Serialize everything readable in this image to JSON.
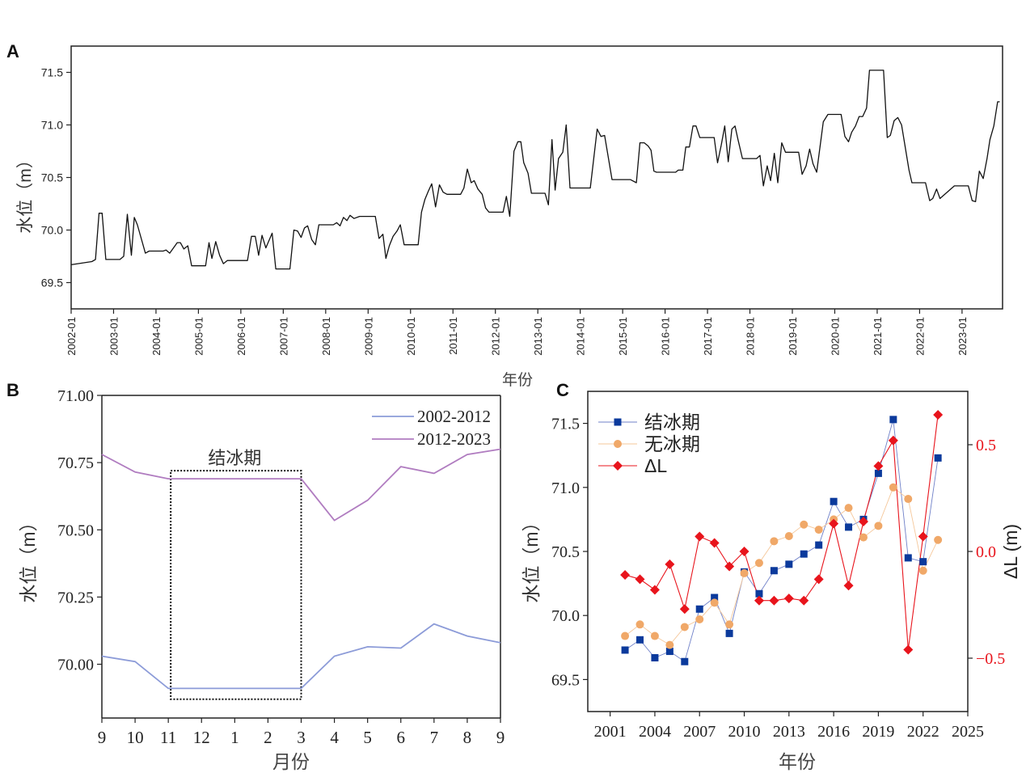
{
  "chart_data": [
    {
      "panel": "A",
      "type": "line",
      "xlabel": "年份",
      "ylabel": "水位（m）",
      "xlim": [
        "2002-01",
        "2023-12"
      ],
      "ylim": [
        69.25,
        71.75
      ],
      "yticks": [
        69.5,
        70.0,
        70.5,
        71.0,
        71.5
      ],
      "ytick_labels": [
        "69.5",
        "70.0",
        "70.5",
        "71.0",
        "71.5"
      ],
      "xtick_labels": [
        "2002-01",
        "2003-01",
        "2004-01",
        "2005-01",
        "2006-01",
        "2007-01",
        "2008-01",
        "2009-01",
        "2010-01",
        "2011-01",
        "2012-01",
        "2013-01",
        "2014-01",
        "2015-01",
        "2016-01",
        "2017-01",
        "2018-01",
        "2019-01",
        "2020-01",
        "2021-01",
        "2022-01",
        "2023-01"
      ],
      "color": "#111111",
      "points": [
        [
          "2002-01-01",
          69.67
        ],
        [
          "2002-06-27",
          69.7
        ],
        [
          "2002-07-28",
          69.72
        ],
        [
          "2002-08-28",
          70.16
        ],
        [
          "2002-09-24",
          70.16
        ],
        [
          "2002-10-26",
          69.72
        ],
        [
          "2003-02-25",
          69.72
        ],
        [
          "2003-03-27",
          69.75
        ],
        [
          "2003-04-28",
          70.15
        ],
        [
          "2003-06-02",
          69.76
        ],
        [
          "2003-06-27",
          70.12
        ],
        [
          "2003-07-23",
          70.05
        ],
        [
          "2003-10-01",
          69.78
        ],
        [
          "2003-11-03",
          69.8
        ],
        [
          "2004-03-02",
          69.8
        ],
        [
          "2004-03-27",
          69.81
        ],
        [
          "2004-04-28",
          69.78
        ],
        [
          "2004-07-01",
          69.88
        ],
        [
          "2004-07-28",
          69.88
        ],
        [
          "2004-08-28",
          69.82
        ],
        [
          "2004-10-01",
          69.85
        ],
        [
          "2004-11-03",
          69.66
        ],
        [
          "2005-03-02",
          69.66
        ],
        [
          "2005-04-01",
          69.88
        ],
        [
          "2005-04-26",
          69.73
        ],
        [
          "2005-05-28",
          69.89
        ],
        [
          "2005-07-01",
          69.76
        ],
        [
          "2005-08-03",
          69.68
        ],
        [
          "2005-09-06",
          69.71
        ],
        [
          "2006-02-28",
          69.71
        ],
        [
          "2006-04-01",
          69.94
        ],
        [
          "2006-05-03",
          69.94
        ],
        [
          "2006-06-02",
          69.76
        ],
        [
          "2006-07-01",
          69.95
        ],
        [
          "2006-08-03",
          69.83
        ],
        [
          "2006-09-27",
          69.97
        ],
        [
          "2006-10-28",
          69.63
        ],
        [
          "2007-02-28",
          69.63
        ],
        [
          "2007-04-01",
          70.0
        ],
        [
          "2007-05-03",
          69.99
        ],
        [
          "2007-06-02",
          69.93
        ],
        [
          "2007-07-01",
          70.02
        ],
        [
          "2007-07-28",
          70.04
        ],
        [
          "2007-09-02",
          69.91
        ],
        [
          "2007-10-04",
          69.86
        ],
        [
          "2007-11-03",
          70.05
        ],
        [
          "2008-03-06",
          70.05
        ],
        [
          "2008-04-04",
          70.07
        ],
        [
          "2008-05-03",
          70.04
        ],
        [
          "2008-06-02",
          70.12
        ],
        [
          "2008-07-01",
          70.09
        ],
        [
          "2008-07-28",
          70.14
        ],
        [
          "2008-09-02",
          70.11
        ],
        [
          "2008-10-19",
          70.13
        ],
        [
          "2009-03-02",
          70.13
        ],
        [
          "2009-04-04",
          69.92
        ],
        [
          "2009-05-07",
          69.96
        ],
        [
          "2009-06-02",
          69.73
        ],
        [
          "2009-07-01",
          69.85
        ],
        [
          "2009-08-03",
          69.94
        ],
        [
          "2009-09-06",
          69.99
        ],
        [
          "2009-10-04",
          70.05
        ],
        [
          "2009-11-07",
          69.86
        ],
        [
          "2010-03-06",
          69.86
        ],
        [
          "2010-04-04",
          70.17
        ],
        [
          "2010-05-03",
          70.29
        ],
        [
          "2010-06-02",
          70.37
        ],
        [
          "2010-07-01",
          70.44
        ],
        [
          "2010-08-03",
          70.22
        ],
        [
          "2010-09-06",
          70.43
        ],
        [
          "2010-10-08",
          70.36
        ],
        [
          "2010-11-11",
          70.34
        ],
        [
          "2011-03-06",
          70.34
        ],
        [
          "2011-04-04",
          70.4
        ],
        [
          "2011-05-03",
          70.58
        ],
        [
          "2011-06-06",
          70.45
        ],
        [
          "2011-07-01",
          70.47
        ],
        [
          "2011-08-03",
          70.39
        ],
        [
          "2011-09-09",
          70.34
        ],
        [
          "2011-10-08",
          70.21
        ],
        [
          "2011-11-07",
          70.17
        ],
        [
          "2012-03-06",
          70.17
        ],
        [
          "2012-04-04",
          70.32
        ],
        [
          "2012-05-03",
          70.13
        ],
        [
          "2012-06-09",
          70.75
        ],
        [
          "2012-07-12",
          70.84
        ],
        [
          "2012-08-07",
          70.84
        ],
        [
          "2012-09-02",
          70.64
        ],
        [
          "2012-10-08",
          70.54
        ],
        [
          "2012-11-07",
          70.35
        ],
        [
          "2013-03-02",
          70.35
        ],
        [
          "2013-04-01",
          70.24
        ],
        [
          "2013-05-01",
          70.86
        ],
        [
          "2013-05-28",
          70.38
        ],
        [
          "2013-06-27",
          70.68
        ],
        [
          "2013-08-03",
          70.74
        ],
        [
          "2013-09-02",
          71.0
        ],
        [
          "2013-10-04",
          70.4
        ],
        [
          "2014-03-27",
          70.4
        ],
        [
          "2014-05-25",
          70.96
        ],
        [
          "2014-06-27",
          70.89
        ],
        [
          "2014-07-28",
          70.9
        ],
        [
          "2014-10-01",
          70.48
        ],
        [
          "2014-10-26",
          70.48
        ],
        [
          "2015-03-06",
          70.48
        ],
        [
          "2015-04-28",
          70.45
        ],
        [
          "2015-05-28",
          70.83
        ],
        [
          "2015-07-04",
          70.83
        ],
        [
          "2015-08-07",
          70.8
        ],
        [
          "2015-09-02",
          70.76
        ],
        [
          "2015-09-27",
          70.56
        ],
        [
          "2015-10-19",
          70.55
        ],
        [
          "2016-04-01",
          70.55
        ],
        [
          "2016-04-23",
          70.57
        ],
        [
          "2016-06-02",
          70.57
        ],
        [
          "2016-06-27",
          70.79
        ],
        [
          "2016-07-28",
          70.79
        ],
        [
          "2016-08-28",
          70.99
        ],
        [
          "2016-09-24",
          70.99
        ],
        [
          "2016-10-26",
          70.88
        ],
        [
          "2017-02-28",
          70.88
        ],
        [
          "2017-03-27",
          70.64
        ],
        [
          "2017-04-28",
          70.81
        ],
        [
          "2017-05-28",
          70.99
        ],
        [
          "2017-06-27",
          70.65
        ],
        [
          "2017-07-28",
          70.96
        ],
        [
          "2017-08-25",
          70.99
        ],
        [
          "2017-09-20",
          70.86
        ],
        [
          "2017-10-28",
          70.68
        ],
        [
          "2018-02-28",
          70.68
        ],
        [
          "2018-03-27",
          70.71
        ],
        [
          "2018-04-26",
          70.42
        ],
        [
          "2018-05-28",
          70.61
        ],
        [
          "2018-06-27",
          70.47
        ],
        [
          "2018-07-28",
          70.73
        ],
        [
          "2018-08-28",
          70.45
        ],
        [
          "2018-10-01",
          70.83
        ],
        [
          "2018-11-03",
          70.74
        ],
        [
          "2019-02-25",
          70.74
        ],
        [
          "2019-03-24",
          70.53
        ],
        [
          "2019-04-28",
          70.61
        ],
        [
          "2019-05-28",
          70.77
        ],
        [
          "2019-06-27",
          70.63
        ],
        [
          "2019-07-28",
          70.55
        ],
        [
          "2019-09-24",
          71.03
        ],
        [
          "2019-11-03",
          71.1
        ],
        [
          "2020-02-25",
          71.1
        ],
        [
          "2020-03-27",
          70.89
        ],
        [
          "2020-04-28",
          70.84
        ],
        [
          "2020-05-25",
          70.93
        ],
        [
          "2020-06-27",
          70.99
        ],
        [
          "2020-07-28",
          71.08
        ],
        [
          "2020-08-28",
          71.08
        ],
        [
          "2020-10-01",
          71.16
        ],
        [
          "2020-10-26",
          71.52
        ],
        [
          "2021-02-25",
          71.52
        ],
        [
          "2021-03-27",
          70.88
        ],
        [
          "2021-04-23",
          70.9
        ],
        [
          "2021-05-25",
          71.04
        ],
        [
          "2021-06-27",
          71.07
        ],
        [
          "2021-07-28",
          71.0
        ],
        [
          "2021-10-01",
          70.57
        ],
        [
          "2021-10-26",
          70.45
        ],
        [
          "2022-02-21",
          70.45
        ],
        [
          "2022-03-27",
          70.28
        ],
        [
          "2022-04-23",
          70.3
        ],
        [
          "2022-05-25",
          70.39
        ],
        [
          "2022-06-24",
          70.3
        ],
        [
          "2022-10-26",
          70.42
        ],
        [
          "2023-02-25",
          70.42
        ],
        [
          "2023-03-27",
          70.28
        ],
        [
          "2023-04-26",
          70.27
        ],
        [
          "2023-05-28",
          70.56
        ],
        [
          "2023-07-01",
          70.49
        ],
        [
          "2023-08-03",
          70.68
        ],
        [
          "2023-08-28",
          70.86
        ],
        [
          "2023-10-01",
          70.99
        ],
        [
          "2023-11-03",
          71.22
        ],
        [
          "2023-11-21",
          71.22
        ]
      ]
    },
    {
      "panel": "B",
      "type": "line",
      "xlabel": "月份",
      "ylabel": "水位（m）",
      "categories": [
        "9",
        "10",
        "11",
        "12",
        "1",
        "2",
        "3",
        "4",
        "5",
        "6",
        "7",
        "8",
        "9"
      ],
      "ylim": [
        69.8,
        71.0
      ],
      "yticks": [
        70.0,
        70.25,
        70.5,
        70.75,
        71.0
      ],
      "ytick_labels": [
        "70.00",
        "70.25",
        "70.50",
        "70.75",
        "71.00"
      ],
      "legend": "top-right",
      "annotation": {
        "text": "结冰期",
        "from": "11",
        "to": "3",
        "ylim": [
          69.87,
          70.72
        ]
      },
      "series": [
        {
          "name": "2002-2012",
          "color": "#8c9bd8",
          "values": [
            70.03,
            70.01,
            69.91,
            69.91,
            69.91,
            69.91,
            69.91,
            70.03,
            70.065,
            70.06,
            70.15,
            70.105,
            70.08
          ]
        },
        {
          "name": "2012-2023",
          "color": "#b07cc0",
          "values": [
            70.78,
            70.715,
            70.69,
            70.69,
            70.69,
            70.69,
            70.69,
            70.535,
            70.61,
            70.735,
            70.71,
            70.78,
            70.8
          ]
        }
      ]
    },
    {
      "panel": "C",
      "type": "line",
      "xlabel": "年份",
      "ylabel": "水位（m）",
      "ylabel_right": "ΔL (m)",
      "xlim": [
        1999.5,
        2025
      ],
      "xticks": [
        2001,
        2004,
        2007,
        2010,
        2013,
        2016,
        2019,
        2022,
        2025
      ],
      "ylim": [
        69.25,
        71.75
      ],
      "yticks": [
        69.5,
        70.0,
        70.5,
        71.0,
        71.5
      ],
      "ytick_labels": [
        "69.5",
        "70.0",
        "70.5",
        "71.0",
        "71.5"
      ],
      "ylim_right": [
        -0.75,
        0.75
      ],
      "yticks_right": [
        -0.5,
        0.0,
        0.5
      ],
      "ytick_labels_right": [
        "−0.5",
        "0.0",
        "0.5"
      ],
      "right_axis_color": "#e8141c",
      "legend": "top-left",
      "x": [
        2002,
        2003,
        2004,
        2005,
        2006,
        2007,
        2008,
        2009,
        2010,
        2011,
        2012,
        2013,
        2014,
        2015,
        2016,
        2017,
        2018,
        2019,
        2020,
        2021,
        2022,
        2023
      ],
      "series": [
        {
          "name": "结冰期",
          "marker": "square",
          "color": "#0b3a9c",
          "line_color": "#6f80c8",
          "axis": "left",
          "values": [
            69.73,
            69.81,
            69.67,
            69.72,
            69.64,
            70.05,
            70.14,
            69.86,
            70.34,
            70.17,
            70.35,
            70.4,
            70.48,
            70.55,
            70.89,
            70.69,
            70.75,
            71.11,
            71.53,
            70.45,
            70.42,
            71.23
          ]
        },
        {
          "name": "无冰期",
          "marker": "circle",
          "color": "#f0a868",
          "line_color": "#f5c79a",
          "axis": "left",
          "values": [
            69.84,
            69.93,
            69.84,
            69.77,
            69.91,
            69.97,
            70.1,
            69.93,
            70.33,
            70.41,
            70.58,
            70.62,
            70.71,
            70.67,
            70.75,
            70.84,
            70.61,
            70.7,
            71.0,
            70.91,
            70.35,
            70.59
          ]
        },
        {
          "name": "ΔL",
          "marker": "diamond",
          "color": "#e8141c",
          "line_color": "#e8141c",
          "axis": "right",
          "values": [
            -0.11,
            -0.13,
            -0.18,
            -0.06,
            -0.27,
            0.07,
            0.04,
            -0.07,
            0.0,
            -0.23,
            -0.23,
            -0.22,
            -0.23,
            -0.13,
            0.13,
            -0.16,
            0.14,
            0.4,
            0.52,
            -0.46,
            0.07,
            0.64
          ]
        }
      ]
    }
  ]
}
